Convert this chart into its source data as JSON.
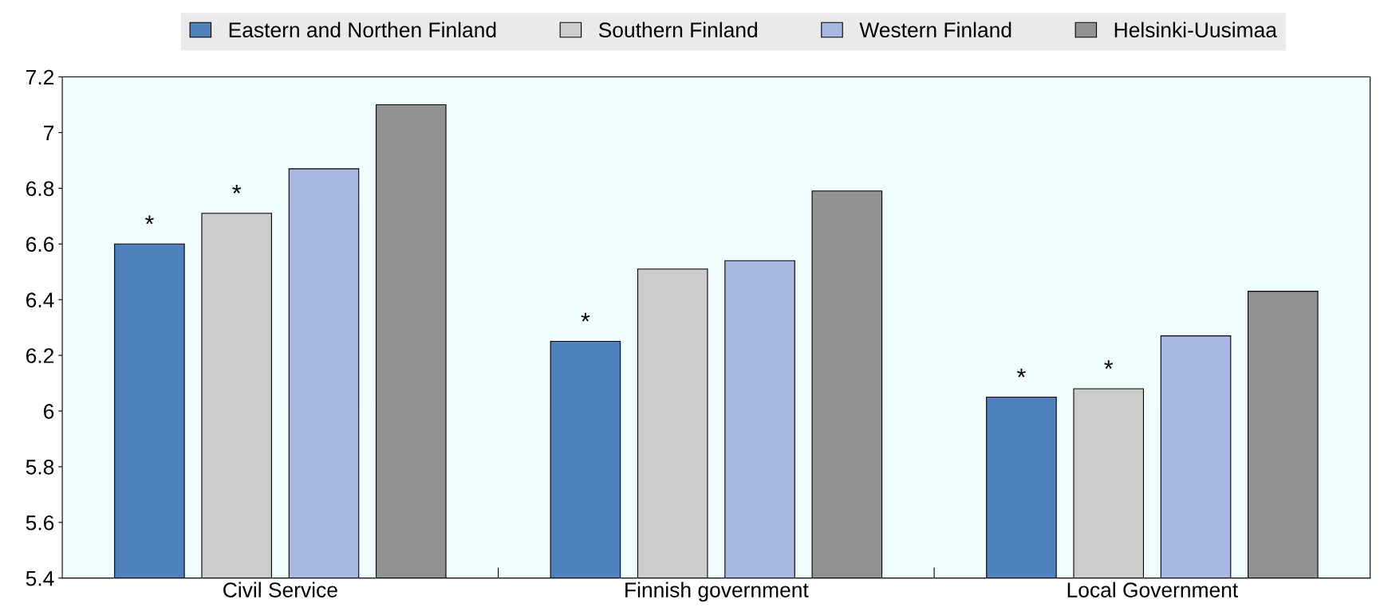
{
  "chart_data": {
    "type": "bar",
    "categories": [
      "Civil Service",
      "Finnish government",
      "Local Government"
    ],
    "series": [
      {
        "name": "Eastern and Northen Finland",
        "color": "#4f81bd",
        "values": [
          6.6,
          6.25,
          6.05
        ],
        "value_labels": [
          "*",
          "*",
          "*"
        ]
      },
      {
        "name": "Southern Finland",
        "color": "#cccccc",
        "values": [
          6.71,
          6.51,
          6.08
        ],
        "value_labels": [
          "*",
          null,
          "*"
        ]
      },
      {
        "name": "Western Finland",
        "color": "#a7b9e3",
        "values": [
          6.87,
          6.54,
          6.27
        ]
      },
      {
        "name": "Helsinki-Uusimaa",
        "color": "#929292",
        "values": [
          7.1,
          6.79,
          6.43
        ]
      }
    ],
    "ylim": [
      5.4,
      7.2
    ],
    "yticks": [
      5.4,
      5.6,
      5.8,
      6,
      6.2,
      6.4,
      6.6,
      6.8,
      7,
      7.2
    ],
    "grid": false,
    "legend": "top"
  }
}
